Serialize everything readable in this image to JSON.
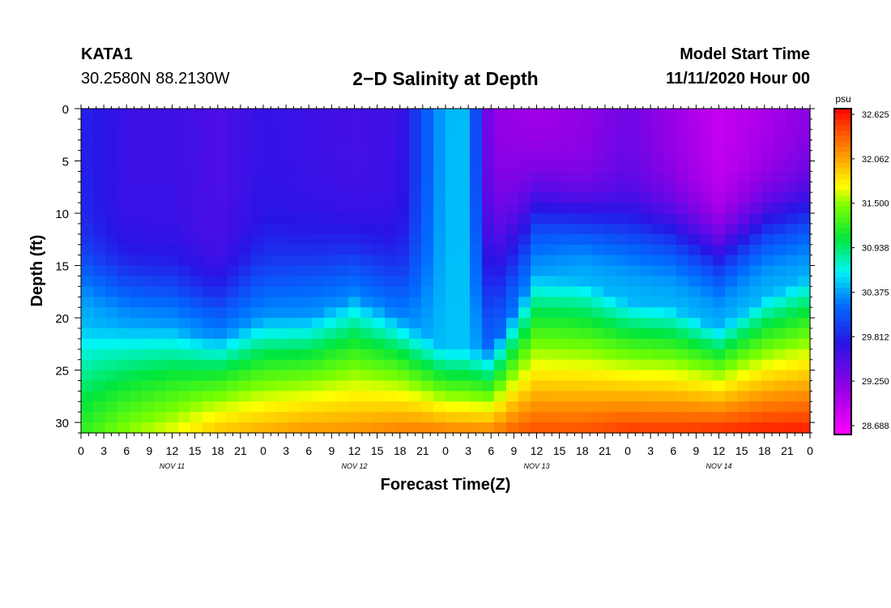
{
  "header": {
    "station": "KATA1",
    "coords": "30.2580N 88.2130W",
    "title": "2−D Salinity at Depth",
    "model_start_label": "Model Start Time",
    "model_start_value": "11/11/2020 Hour 00"
  },
  "chart_data": {
    "type": "heatmap",
    "xlabel": "Forecast Time(Z)",
    "ylabel": "Depth (ft)",
    "x_ticks": [
      "0",
      "3",
      "6",
      "9",
      "12",
      "15",
      "18",
      "21",
      "0",
      "3",
      "6",
      "9",
      "12",
      "15",
      "18",
      "21",
      "0",
      "3",
      "6",
      "9",
      "12",
      "15",
      "18",
      "21",
      "0",
      "3",
      "6",
      "9",
      "12",
      "15",
      "18",
      "21",
      "0"
    ],
    "x_range_hours": [
      0,
      96
    ],
    "day_labels": [
      "NOV 11",
      "NOV 12",
      "NOV 13",
      "NOV 14"
    ],
    "y_ticks": [
      0,
      5,
      10,
      15,
      20,
      25,
      30
    ],
    "ylim": [
      0,
      31
    ],
    "y_inverted": true,
    "colorbar": {
      "unit": "psu",
      "ticks": [
        "32.625",
        "32.062",
        "31.500",
        "30.938",
        "30.375",
        "29.812",
        "29.250",
        "28.688"
      ],
      "range": [
        28.4,
        32.9
      ]
    },
    "profiles_hours": [
      0,
      6,
      12,
      18,
      24,
      30,
      36,
      42,
      48,
      51,
      54,
      60,
      66,
      72,
      78,
      84,
      90,
      96
    ],
    "surface_salinity": [
      29.75,
      29.55,
      29.55,
      29.45,
      29.6,
      29.55,
      29.5,
      29.55,
      30.45,
      30.45,
      29.0,
      28.95,
      29.05,
      29.25,
      29.0,
      28.75,
      28.9,
      29.1
    ],
    "mid_depth_ft": [
      15.5,
      17,
      17.5,
      19,
      16.5,
      16,
      15,
      17,
      18,
      17.5,
      17.5,
      10,
      10.5,
      11.5,
      12,
      14,
      11,
      10
    ],
    "transition_ft": [
      3.5,
      3.5,
      3.5,
      3.5,
      4.5,
      4.5,
      4,
      4.5,
      8,
      9,
      9,
      4.5,
      3.5,
      4,
      4,
      4,
      4,
      4
    ],
    "bottom_salinity": [
      31.3,
      31.6,
      31.8,
      32.1,
      32.2,
      32.3,
      32.3,
      32.4,
      32.5,
      32.5,
      32.5,
      32.6,
      32.6,
      32.7,
      32.7,
      32.75,
      32.8,
      32.8
    ],
    "bottom_thickness_ft": [
      10,
      10,
      10,
      9,
      11,
      11,
      13,
      11,
      8,
      8,
      8,
      15,
      14.5,
      12.5,
      12,
      10,
      13,
      15
    ]
  }
}
